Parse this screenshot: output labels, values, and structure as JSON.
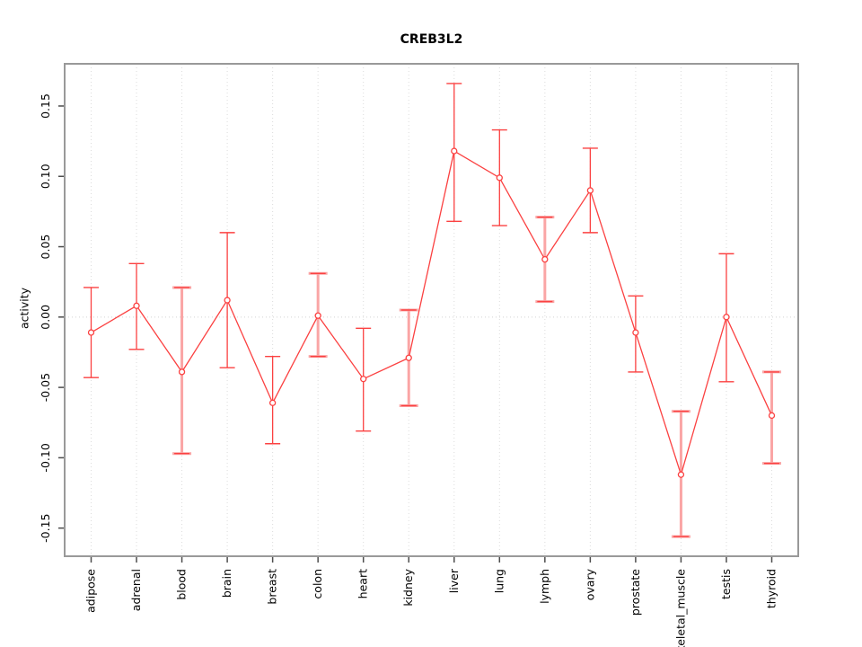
{
  "figure": {
    "background": "#ffffff"
  },
  "chart_data": {
    "type": "line",
    "title": "CREB3L2",
    "xlabel": "",
    "ylabel": "activity",
    "ylim": [
      -0.17,
      0.18
    ],
    "grid": "vertical dotted gridline per category, dotted horizontal line at y=0, legend none",
    "categories": [
      "adipose",
      "adrenal",
      "blood",
      "brain",
      "breast",
      "colon",
      "heart",
      "kidney",
      "liver",
      "lung",
      "lymph",
      "ovary",
      "prostate",
      "skeletal_muscle",
      "testis",
      "thyroid"
    ],
    "series": [
      {
        "name": "activity",
        "marker": "open-circle",
        "values": [
          -0.011,
          0.008,
          -0.039,
          0.012,
          -0.061,
          0.001,
          -0.044,
          -0.029,
          0.118,
          0.099,
          0.041,
          0.09,
          -0.011,
          -0.112,
          0.0,
          -0.07
        ],
        "err_hi": [
          0.021,
          0.038,
          0.021,
          0.06,
          -0.028,
          0.031,
          -0.008,
          0.005,
          0.166,
          0.133,
          0.071,
          0.12,
          0.015,
          -0.067,
          0.045,
          -0.039
        ],
        "err_lo": [
          -0.043,
          -0.023,
          -0.097,
          -0.036,
          -0.09,
          -0.028,
          -0.081,
          -0.063,
          0.068,
          0.065,
          0.011,
          0.06,
          -0.039,
          -0.156,
          -0.046,
          -0.104
        ]
      }
    ],
    "bar_styles": [
      "red",
      "red",
      "pink",
      "red",
      "red",
      "pink",
      "red",
      "pink",
      "red",
      "red",
      "pink",
      "red",
      "red",
      "pink",
      "red",
      "pink"
    ],
    "yticks": [
      0.15,
      0.1,
      0.05,
      0.0,
      -0.05,
      -0.1,
      -0.15
    ],
    "ytick_labels": [
      "0.15",
      "0.10",
      "0.05",
      "0.00",
      "-0.05",
      "-0.10",
      "-0.15"
    ],
    "colors": {
      "series_red": "#fb4141",
      "errorbar_pink": "#faa5a5",
      "gridline": "#dcdcdc",
      "zero_line": "#d4d4d4",
      "frame": "#999999",
      "tick": "#4d4d4d",
      "text": "#000000",
      "marker_fill": "#ffffff"
    }
  }
}
